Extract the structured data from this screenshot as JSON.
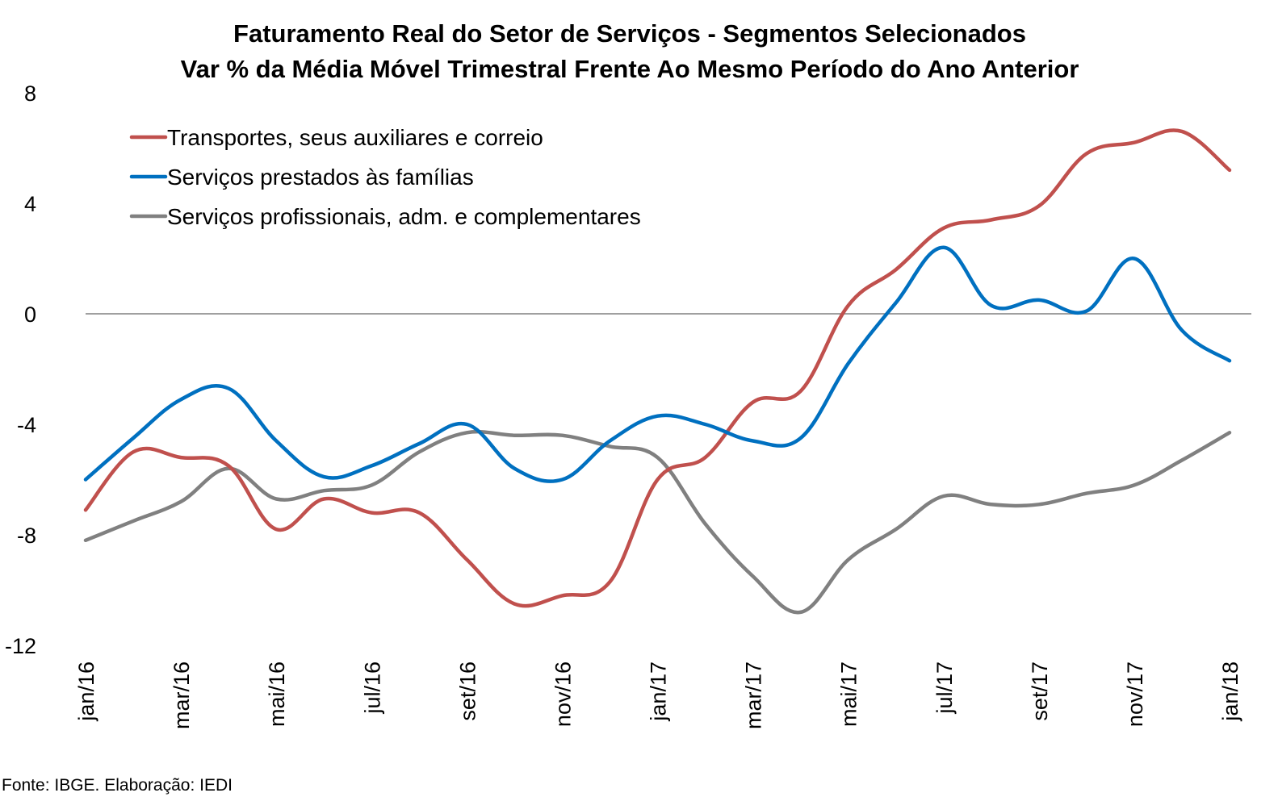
{
  "title_line1": "Faturamento Real do Setor de Serviços - Segmentos Selecionados",
  "title_line2": "Var % da Média Móvel Trimestral Frente Ao Mesmo Período do Ano Anterior",
  "source": "Fonte: IBGE. Elaboração: IEDI",
  "chart_data": {
    "type": "line",
    "categories": [
      "jan/16",
      "fev/16",
      "mar/16",
      "abr/16",
      "mai/16",
      "jun/16",
      "jul/16",
      "ago/16",
      "set/16",
      "out/16",
      "nov/16",
      "dez/16",
      "jan/17",
      "fev/17",
      "mar/17",
      "abr/17",
      "mai/17",
      "jun/17",
      "jul/17",
      "ago/17",
      "set/17",
      "out/17",
      "nov/17",
      "dez/17",
      "jan/18"
    ],
    "xtick_labels": [
      "jan/16",
      "mar/16",
      "mai/16",
      "jul/16",
      "set/16",
      "nov/16",
      "jan/17",
      "mar/17",
      "mai/17",
      "jul/17",
      "set/17",
      "nov/17",
      "jan/18"
    ],
    "ylim": [
      -12,
      8
    ],
    "yticks": [
      -12,
      -8,
      -4,
      0,
      4,
      8
    ],
    "ytick_labels": [
      "-12",
      "-8",
      "-4",
      "0",
      "4",
      "8"
    ],
    "grid": false,
    "zero_line": true,
    "legend_position": "top-left",
    "series": [
      {
        "name": "Transportes, seus auxiliares e correio",
        "color": "#C0504D",
        "values": [
          -7.1,
          -5.0,
          -5.2,
          -5.5,
          -7.8,
          -6.7,
          -7.2,
          -7.2,
          -8.9,
          -10.5,
          -10.2,
          -9.7,
          -6.0,
          -5.2,
          -3.2,
          -2.8,
          0.3,
          1.6,
          3.1,
          3.4,
          3.9,
          5.8,
          6.2,
          6.6,
          5.2
        ]
      },
      {
        "name": "Serviços prestados às famílias",
        "color": "#0070C0",
        "values": [
          -6.0,
          -4.5,
          -3.1,
          -2.7,
          -4.6,
          -5.9,
          -5.5,
          -4.7,
          -4.0,
          -5.6,
          -6.0,
          -4.6,
          -3.7,
          -4.0,
          -4.6,
          -4.5,
          -1.8,
          0.4,
          2.4,
          0.3,
          0.5,
          0.1,
          2.0,
          -0.6,
          -1.7
        ]
      },
      {
        "name": "Serviços profissionais, adm. e complementares",
        "color": "#808080",
        "values": [
          -8.2,
          -7.5,
          -6.8,
          -5.6,
          -6.7,
          -6.4,
          -6.2,
          -5.0,
          -4.3,
          -4.4,
          -4.4,
          -4.8,
          -5.2,
          -7.6,
          -9.5,
          -10.8,
          -8.9,
          -7.8,
          -6.6,
          -6.9,
          -6.9,
          -6.5,
          -6.2,
          -5.3,
          -4.3
        ]
      }
    ]
  }
}
